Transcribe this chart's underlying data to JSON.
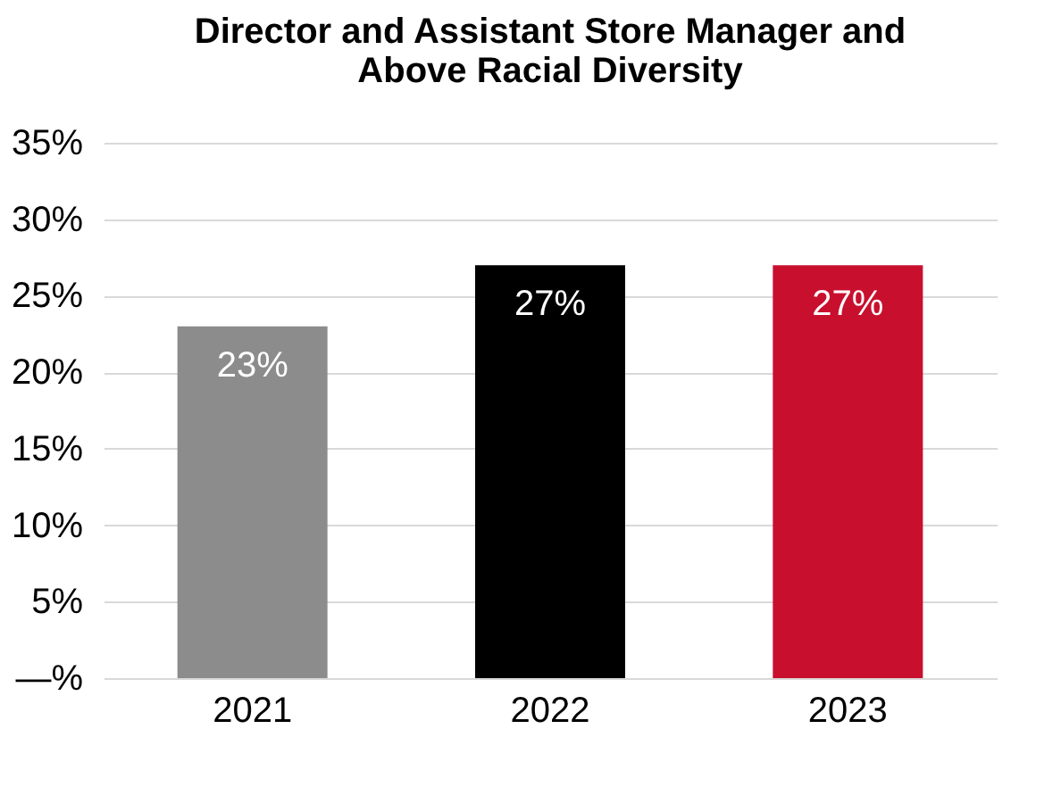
{
  "chart_data": {
    "type": "bar",
    "title": "Director and Assistant Store Manager and Above Racial Diversity",
    "categories": [
      "2021",
      "2022",
      "2023"
    ],
    "values": [
      23,
      27,
      27
    ],
    "colors": [
      "#8c8c8c",
      "#000000",
      "#c8102e"
    ],
    "value_labels": [
      "23%",
      "27%",
      "27%"
    ],
    "ylim": [
      0,
      35
    ],
    "yticks": [
      {
        "value": 0,
        "label": "—%"
      },
      {
        "value": 5,
        "label": "5%"
      },
      {
        "value": 10,
        "label": "10%"
      },
      {
        "value": 15,
        "label": "15%"
      },
      {
        "value": 20,
        "label": "20%"
      },
      {
        "value": 25,
        "label": "25%"
      },
      {
        "value": 30,
        "label": "30%"
      },
      {
        "value": 35,
        "label": "35%"
      }
    ],
    "grid": "y"
  }
}
